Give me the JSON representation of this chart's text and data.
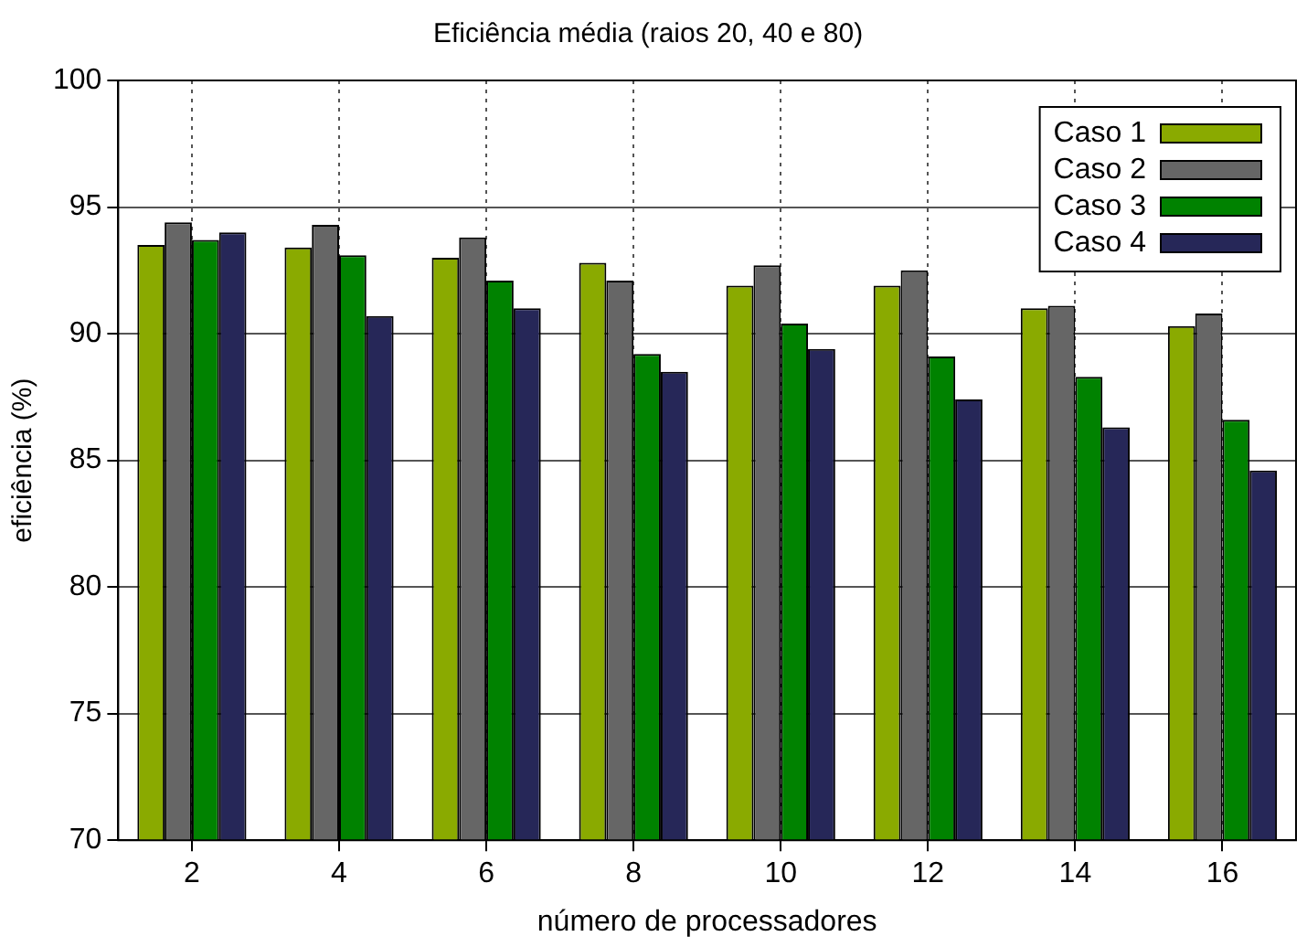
{
  "chart_data": {
    "type": "bar",
    "title": "Eficiência média (raios 20, 40 e 80)",
    "xlabel": "número de processadores",
    "ylabel": "eficiência (%)",
    "categories": [
      "2",
      "4",
      "6",
      "8",
      "10",
      "12",
      "14",
      "16"
    ],
    "series": [
      {
        "name": "Caso 1",
        "color": "#8aaa00",
        "values": [
          93.5,
          93.4,
          93.0,
          92.8,
          91.9,
          91.9,
          91.0,
          90.3
        ]
      },
      {
        "name": "Caso 2",
        "color": "#666666",
        "values": [
          94.4,
          94.3,
          93.8,
          92.1,
          92.7,
          92.5,
          91.1,
          90.8
        ]
      },
      {
        "name": "Caso 3",
        "color": "#008200",
        "values": [
          93.7,
          93.1,
          92.1,
          89.2,
          90.4,
          89.1,
          88.3,
          86.6
        ]
      },
      {
        "name": "Caso 4",
        "color": "#262758",
        "values": [
          94.0,
          90.7,
          91.0,
          88.5,
          89.4,
          87.4,
          86.3,
          84.6
        ]
      }
    ],
    "ylim": [
      70,
      100
    ],
    "yticks": [
      70,
      75,
      80,
      85,
      90,
      95,
      100
    ],
    "grid": true,
    "legend": "top right"
  }
}
